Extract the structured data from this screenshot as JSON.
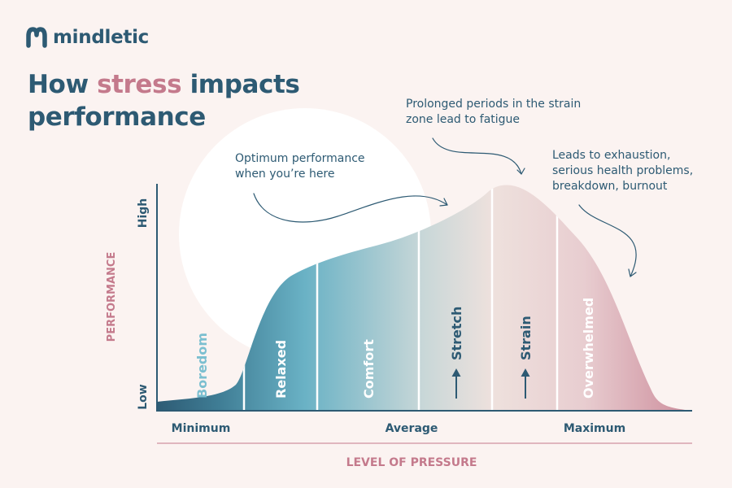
{
  "brand": {
    "name": "mindletic"
  },
  "title": {
    "part1": "How ",
    "accent": "stress",
    "part2": " impacts",
    "line2": "performance"
  },
  "notes": {
    "strain_fatigue": "Prolonged periods in the strain\nzone lead to fatigue",
    "optimum": "Optimum performance\nwhen you’re here",
    "exhaustion": "Leads to exhaustion,\nserious health problems,\nbreakdown, burnout"
  },
  "chart_data": {
    "type": "area",
    "title": "How stress impacts performance",
    "xlabel": "LEVEL OF PRESSURE",
    "ylabel": "PERFORMANCE",
    "x_ticks": [
      "Minimum",
      "Average",
      "Maximum"
    ],
    "y_ticks": [
      "Low",
      "High"
    ],
    "zones": [
      "Boredom",
      "Relaxed",
      "Comfort",
      "Stretch",
      "Strain",
      "Overwhelmed"
    ],
    "grid": false
  },
  "colors": {
    "primary": "#2d5a73",
    "accent": "#c47a8c",
    "teal": "#5fa8bd",
    "pink": "#d39aa6",
    "background": "#fbf3f1"
  }
}
